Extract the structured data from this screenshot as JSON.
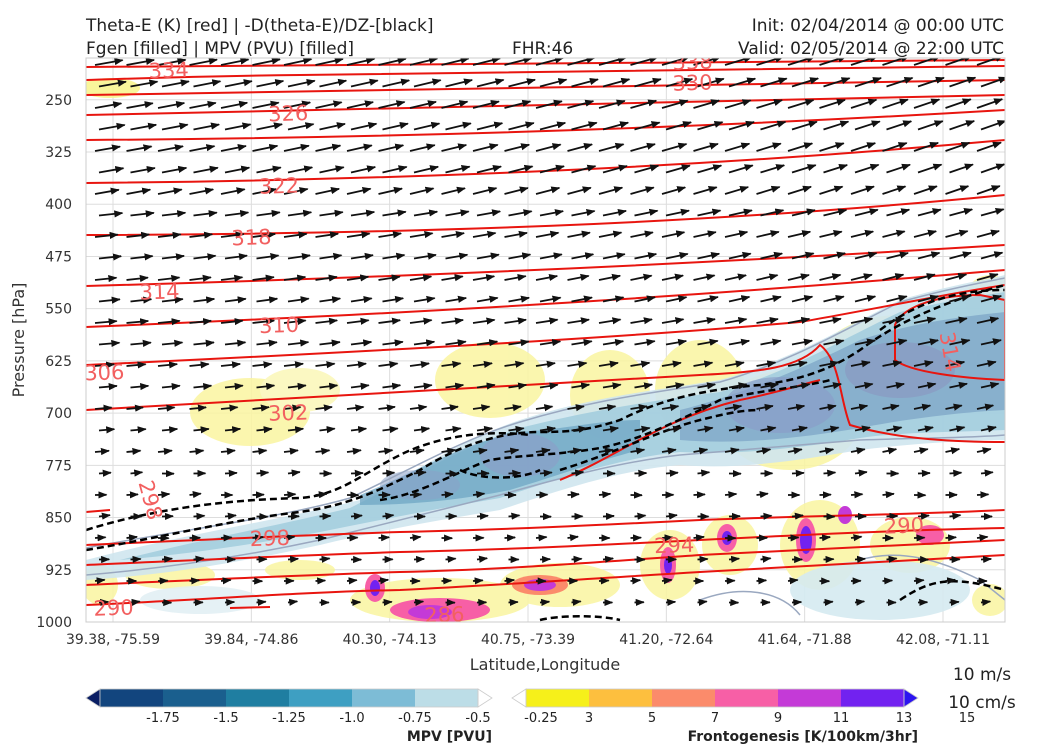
{
  "header": {
    "title_left_1": "Theta-E (K) [red] | -D(theta-E)/DZ-[black]",
    "title_left_2": "Fgen [filled] | MPV (PVU) [filled]",
    "fhr": "FHR:46",
    "init": "Init: 02/04/2014 @ 00:00 UTC",
    "valid": "Valid: 02/05/2014 @ 22:00 UTC"
  },
  "chart_data": {
    "type": "cross-section",
    "xlabel": "Latitude,Longitude",
    "ylabel": "Pressure [hPa]",
    "x_ticks": [
      "39.38, -75.59",
      "39.84, -74.86",
      "40.30, -74.13",
      "40.75, -73.39",
      "41.20, -72.64",
      "41.64, -71.88",
      "42.08, -71.11"
    ],
    "y_ticks": [
      250,
      325,
      400,
      475,
      550,
      625,
      700,
      775,
      850,
      925,
      1000
    ],
    "ylim": [
      1000,
      190
    ],
    "theta_e_labels": [
      {
        "value": "334",
        "x_frac": 0.09,
        "p": 208
      },
      {
        "value": "338",
        "x_frac": 0.66,
        "p": 196
      },
      {
        "value": "330",
        "x_frac": 0.66,
        "p": 226
      },
      {
        "value": "326",
        "x_frac": 0.22,
        "p": 270
      },
      {
        "value": "322",
        "x_frac": 0.21,
        "p": 374
      },
      {
        "value": "318",
        "x_frac": 0.18,
        "p": 448
      },
      {
        "value": "314",
        "x_frac": 0.08,
        "p": 526
      },
      {
        "value": "310",
        "x_frac": 0.21,
        "p": 574
      },
      {
        "value": "306",
        "x_frac": 0.02,
        "p": 642
      },
      {
        "value": "302",
        "x_frac": 0.22,
        "p": 700
      },
      {
        "value": "298",
        "x_frac": 0.07,
        "p": 825
      },
      {
        "value": "298",
        "x_frac": 0.2,
        "p": 880
      },
      {
        "value": "294",
        "x_frac": 0.64,
        "p": 890
      },
      {
        "value": "290",
        "x_frac": 0.03,
        "p": 980
      },
      {
        "value": "290",
        "x_frac": 0.89,
        "p": 862
      },
      {
        "value": "286",
        "x_frac": 0.39,
        "p": 990
      },
      {
        "value": "314",
        "x_frac": 0.94,
        "p": 612
      }
    ],
    "mpv_colorbar": {
      "title": "MPV [PVU]",
      "levels": [
        "-1.75",
        "-1.5",
        "-1.25",
        "-1.0",
        "-0.75",
        "-0.5",
        "-0.25"
      ],
      "colors": [
        "#0a1e64",
        "#12457e",
        "#1a5f8e",
        "#1f7ea1",
        "#3e9fc2",
        "#7dbcd6",
        "#bcdde7",
        "#ffffff"
      ]
    },
    "fgen_colorbar": {
      "title": "Frontogenesis [K/100km/3hr]",
      "levels": [
        "3",
        "5",
        "7",
        "9",
        "11",
        "13",
        "15"
      ],
      "colors": [
        "#ffffff",
        "#f6f01a",
        "#fdbf3e",
        "#fb8b6b",
        "#f75fa6",
        "#c43ad7",
        "#7222f0",
        "#2d14f0"
      ]
    },
    "wind_scale": [
      "10 m/s",
      "10 cm/s"
    ]
  }
}
